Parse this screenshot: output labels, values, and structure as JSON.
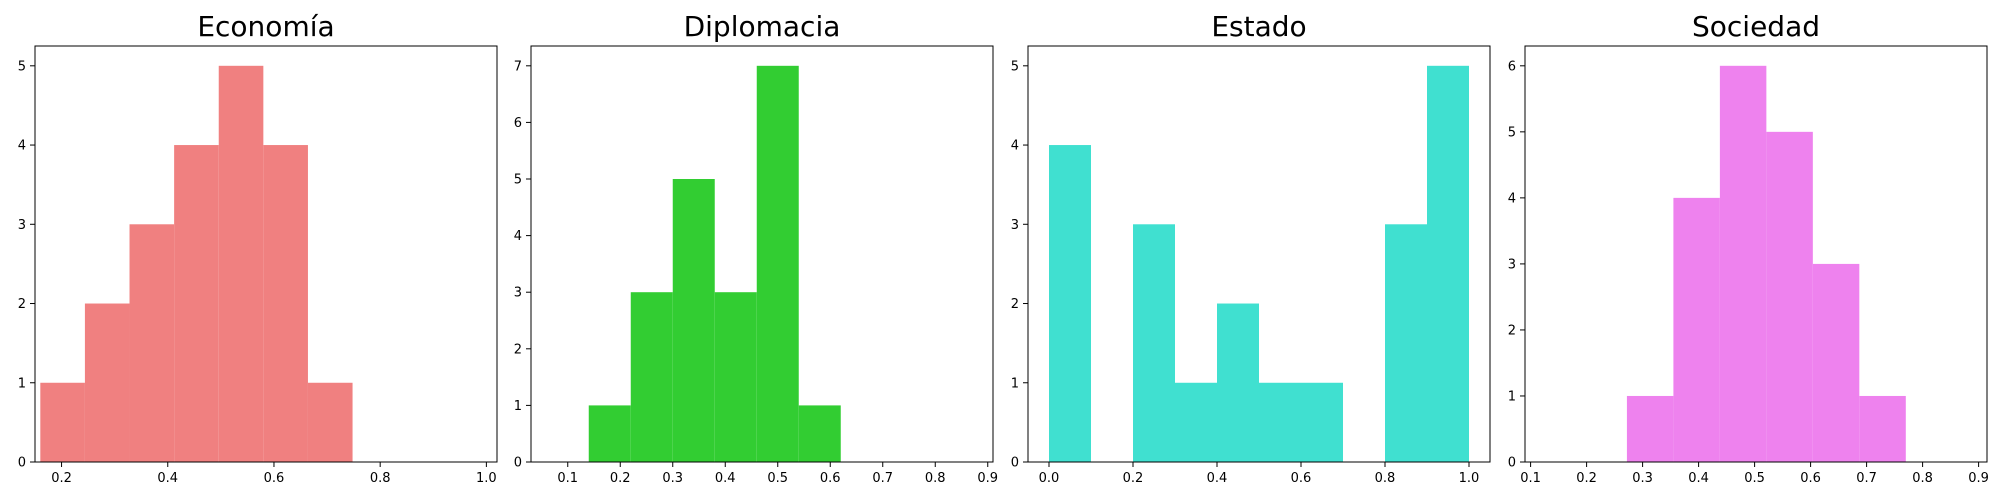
{
  "chart_data": [
    {
      "type": "bar",
      "title": "Economía",
      "color": "#F08080",
      "xlim": [
        0.15,
        1.02
      ],
      "ylim": [
        0,
        5.25
      ],
      "xticks": [
        0.2,
        0.4,
        0.6,
        0.8,
        1.0
      ],
      "xtick_labels": [
        "0.2",
        "0.4",
        "0.6",
        "0.8",
        "1.0"
      ],
      "yticks": [
        0,
        1,
        2,
        3,
        4,
        5
      ],
      "ytick_labels": [
        "0",
        "1",
        "2",
        "3",
        "4",
        "5"
      ],
      "bins": [
        {
          "x0": 0.16,
          "x1": 0.244,
          "count": 1
        },
        {
          "x0": 0.244,
          "x1": 0.328,
          "count": 2
        },
        {
          "x0": 0.328,
          "x1": 0.412,
          "count": 3
        },
        {
          "x0": 0.412,
          "x1": 0.496,
          "count": 4
        },
        {
          "x0": 0.496,
          "x1": 0.58,
          "count": 5
        },
        {
          "x0": 0.58,
          "x1": 0.664,
          "count": 4
        },
        {
          "x0": 0.664,
          "x1": 0.748,
          "count": 1
        }
      ]
    },
    {
      "type": "bar",
      "title": "Diplomacia",
      "color": "#32CD32",
      "xlim": [
        0.03,
        0.91
      ],
      "ylim": [
        0,
        7.35
      ],
      "xticks": [
        0.1,
        0.2,
        0.3,
        0.4,
        0.5,
        0.6,
        0.7,
        0.8,
        0.9
      ],
      "xtick_labels": [
        "0.1",
        "0.2",
        "0.3",
        "0.4",
        "0.5",
        "0.6",
        "0.7",
        "0.8",
        "0.9"
      ],
      "yticks": [
        0,
        1,
        2,
        3,
        4,
        5,
        6,
        7
      ],
      "ytick_labels": [
        "0",
        "1",
        "2",
        "3",
        "4",
        "5",
        "6",
        "7"
      ],
      "bins": [
        {
          "x0": 0.14,
          "x1": 0.22,
          "count": 1
        },
        {
          "x0": 0.22,
          "x1": 0.3,
          "count": 3
        },
        {
          "x0": 0.3,
          "x1": 0.38,
          "count": 5
        },
        {
          "x0": 0.38,
          "x1": 0.46,
          "count": 3
        },
        {
          "x0": 0.46,
          "x1": 0.54,
          "count": 7
        },
        {
          "x0": 0.54,
          "x1": 0.62,
          "count": 1
        }
      ]
    },
    {
      "type": "bar",
      "title": "Estado",
      "color": "#40E0D0",
      "xlim": [
        -0.05,
        1.05
      ],
      "ylim": [
        0,
        5.25
      ],
      "xticks": [
        0.0,
        0.2,
        0.4,
        0.6,
        0.8,
        1.0
      ],
      "xtick_labels": [
        "0.0",
        "0.2",
        "0.4",
        "0.6",
        "0.8",
        "1.0"
      ],
      "yticks": [
        0,
        1,
        2,
        3,
        4,
        5
      ],
      "ytick_labels": [
        "0",
        "1",
        "2",
        "3",
        "4",
        "5"
      ],
      "bins": [
        {
          "x0": 0.0,
          "x1": 0.1,
          "count": 4
        },
        {
          "x0": 0.1,
          "x1": 0.2,
          "count": 0
        },
        {
          "x0": 0.2,
          "x1": 0.3,
          "count": 3
        },
        {
          "x0": 0.3,
          "x1": 0.4,
          "count": 1
        },
        {
          "x0": 0.4,
          "x1": 0.5,
          "count": 2
        },
        {
          "x0": 0.5,
          "x1": 0.6,
          "count": 1
        },
        {
          "x0": 0.6,
          "x1": 0.7,
          "count": 1
        },
        {
          "x0": 0.7,
          "x1": 0.8,
          "count": 0
        },
        {
          "x0": 0.8,
          "x1": 0.9,
          "count": 3
        },
        {
          "x0": 0.9,
          "x1": 1.0,
          "count": 5
        }
      ]
    },
    {
      "type": "bar",
      "title": "Sociedad",
      "color": "#EE82EE",
      "xlim": [
        0.09,
        0.915
      ],
      "ylim": [
        0,
        6.3
      ],
      "xticks": [
        0.1,
        0.2,
        0.3,
        0.4,
        0.5,
        0.6,
        0.7,
        0.8,
        0.9
      ],
      "xtick_labels": [
        "0.1",
        "0.2",
        "0.3",
        "0.4",
        "0.5",
        "0.6",
        "0.7",
        "0.8",
        "0.9"
      ],
      "yticks": [
        0,
        1,
        2,
        3,
        4,
        5,
        6
      ],
      "ytick_labels": [
        "0",
        "1",
        "2",
        "3",
        "4",
        "5",
        "6"
      ],
      "bins": [
        {
          "x0": 0.272,
          "x1": 0.355,
          "count": 1
        },
        {
          "x0": 0.355,
          "x1": 0.438,
          "count": 4
        },
        {
          "x0": 0.438,
          "x1": 0.521,
          "count": 6
        },
        {
          "x0": 0.521,
          "x1": 0.604,
          "count": 5
        },
        {
          "x0": 0.604,
          "x1": 0.687,
          "count": 3
        },
        {
          "x0": 0.687,
          "x1": 0.77,
          "count": 1
        }
      ]
    }
  ]
}
